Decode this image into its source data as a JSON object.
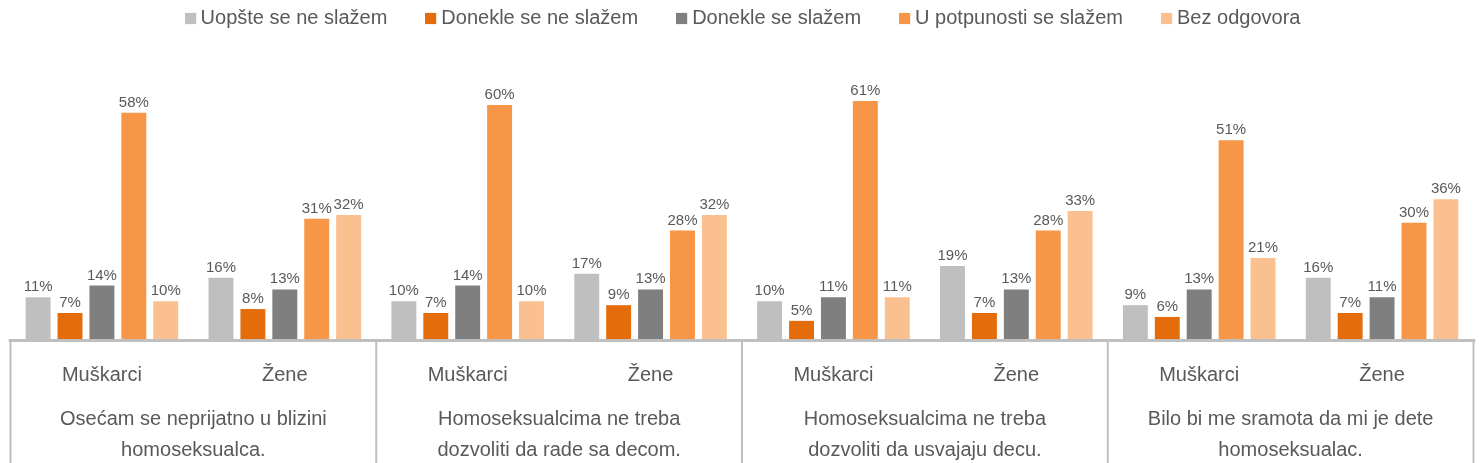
{
  "chart_data": {
    "type": "bar",
    "categories": [
      "Muškarci",
      "Žene",
      "Muškarci",
      "Žene",
      "Muškarci",
      "Žene",
      "Muškarci",
      "Žene"
    ],
    "series": [
      {
        "name": "Uopšte se ne slažem",
        "color": "#bfbfbf",
        "values": [
          11,
          16,
          10,
          17,
          10,
          19,
          9,
          16
        ],
        "value_labels": [
          "11%",
          "16%",
          "10%",
          "17%",
          "10%",
          "19%",
          "9%",
          "16%"
        ]
      },
      {
        "name": "Donekle se ne slažem",
        "color": "#e46c0a",
        "values": [
          7,
          8,
          7,
          9,
          5,
          7,
          6,
          7
        ],
        "value_labels": [
          "7%",
          "8%",
          "7%",
          "9%",
          "5%",
          "7%",
          "6%",
          "7%"
        ]
      },
      {
        "name": "Donekle se slažem",
        "color": "#7f7f7f",
        "values": [
          14,
          13,
          14,
          13,
          11,
          13,
          13,
          11
        ],
        "value_labels": [
          "14%",
          "13%",
          "14%",
          "13%",
          "11%",
          "13%",
          "13%",
          "11%"
        ]
      },
      {
        "name": "U potpunosti se slažem",
        "color": "#f79646",
        "values": [
          58,
          31,
          60,
          28,
          61,
          28,
          51,
          30
        ],
        "value_labels": [
          "58%",
          "31%",
          "60%",
          "28%",
          "61%",
          "28%",
          "51%",
          "30%"
        ]
      },
      {
        "name": "Bez odgovora",
        "color": "#fac090",
        "values": [
          10,
          32,
          10,
          32,
          11,
          33,
          21,
          36
        ],
        "value_labels": [
          "10%",
          "32%",
          "10%",
          "32%",
          "11%",
          "33%",
          "21%",
          "36%"
        ]
      }
    ],
    "annotations": [
      "Osećam se neprijatno u blizini homoseksualca.",
      "Homoseksualcima ne treba dozvoliti da rade sa decom.",
      "Homoseksualcima ne treba dozvoliti da usvajaju decu.",
      "Bilo bi me sramota da mi je dete homoseksualac."
    ],
    "legend": "top"
  }
}
